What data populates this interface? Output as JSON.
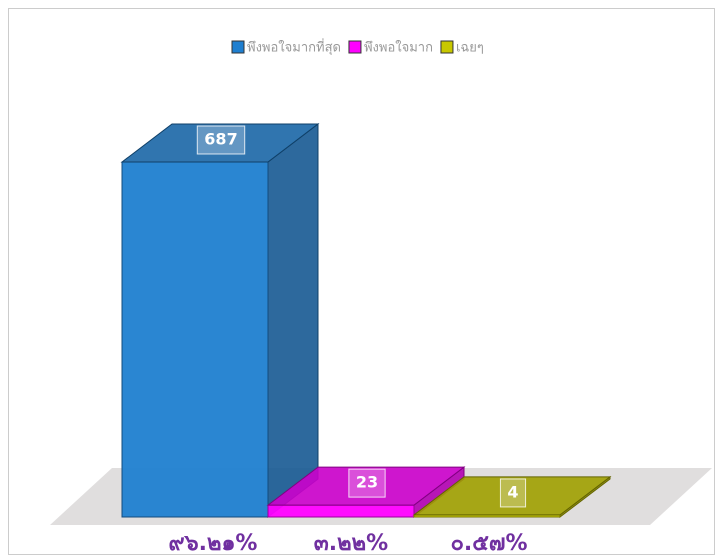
{
  "chart_data": {
    "type": "bar3d",
    "categories": [
      "๙๖.๒๑%",
      "๓.๒๒%",
      "๐.๕๗%"
    ],
    "series": [
      {
        "name": "พึงพอใจมากที่สุด",
        "color": "#1f7fd0"
      },
      {
        "name": "พึงพอใจมาก",
        "color": "#ff00ff"
      },
      {
        "name": "เฉยๆ",
        "color": "#c8c800"
      }
    ],
    "values": [
      687,
      23,
      4
    ]
  }
}
